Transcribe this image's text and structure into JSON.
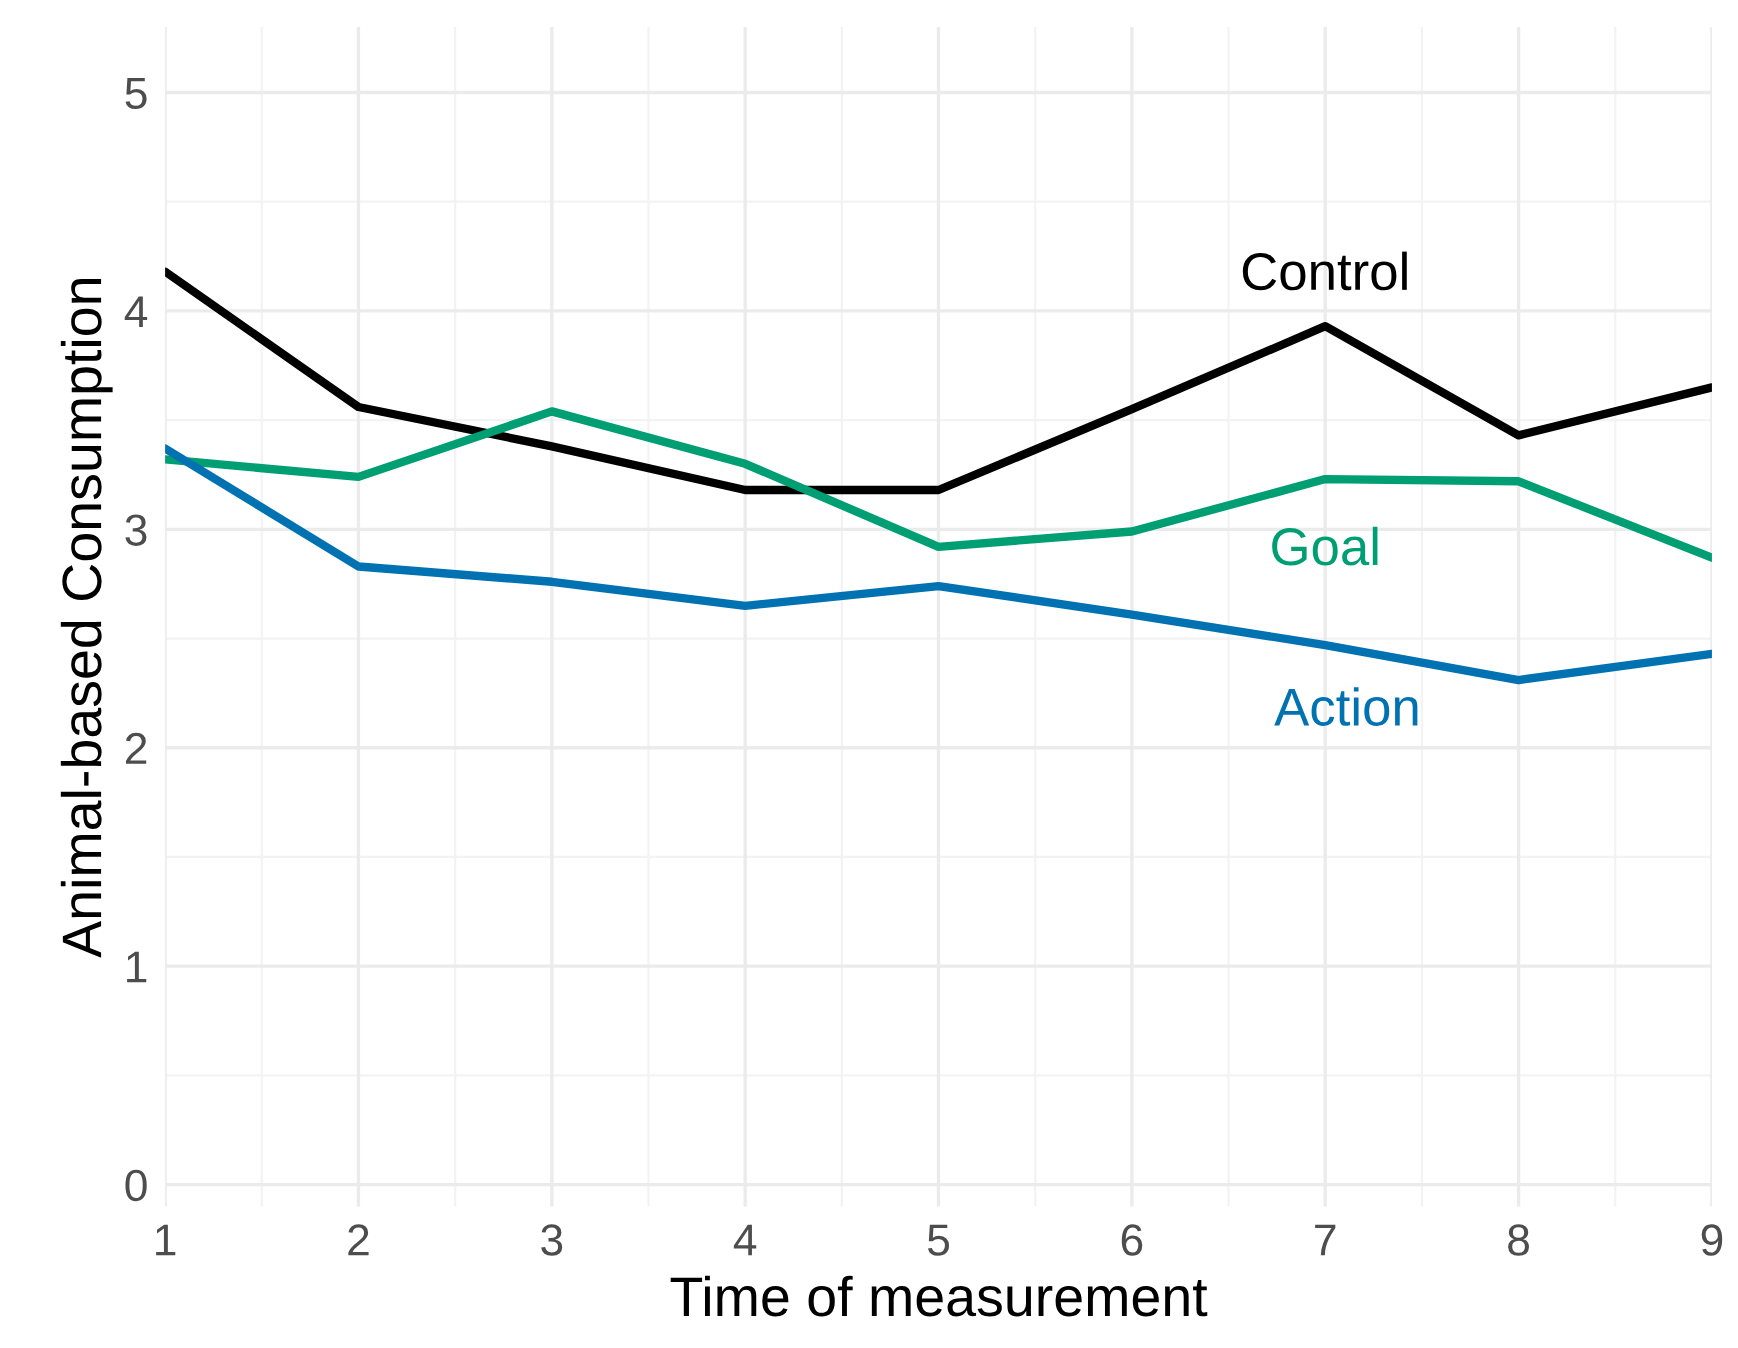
{
  "chart_data": {
    "type": "line",
    "xlabel": "Time of measurement",
    "ylabel": "Animal-based Consumption",
    "x": [
      1,
      2,
      3,
      4,
      5,
      6,
      7,
      8,
      9
    ],
    "series": [
      {
        "name": "Control",
        "color": "#000000",
        "values": [
          4.18,
          3.56,
          3.38,
          3.18,
          3.18,
          3.55,
          3.93,
          3.43,
          3.65
        ]
      },
      {
        "name": "Goal",
        "color": "#009e73",
        "values": [
          3.32,
          3.24,
          3.54,
          3.3,
          2.92,
          2.99,
          3.23,
          3.22,
          2.87
        ]
      },
      {
        "name": "Action",
        "color": "#0072b2",
        "values": [
          3.37,
          2.83,
          2.76,
          2.65,
          2.74,
          2.61,
          2.47,
          2.31,
          2.43
        ]
      }
    ],
    "xlim": [
      1,
      9
    ],
    "ylim": [
      -0.1,
      5.3
    ],
    "xticks": [
      1,
      2,
      3,
      4,
      5,
      6,
      7,
      8,
      9
    ],
    "yticks": [
      0,
      1,
      2,
      3,
      4,
      5
    ],
    "grid": true,
    "legend": false,
    "marker": "none",
    "line_style": "solid"
  }
}
